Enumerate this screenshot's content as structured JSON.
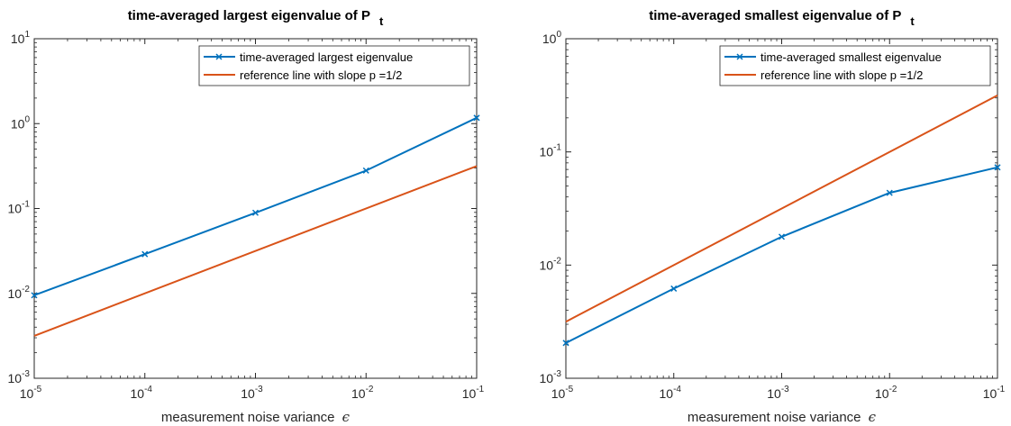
{
  "colors": {
    "series_1": "#0072BD",
    "series_2": "#D95319",
    "axes": "#262626"
  },
  "chart_data": [
    {
      "type": "line",
      "title": "time-averaged largest eigenvalue of P",
      "title_subscript": "t",
      "xlabel": "measurement noise variance",
      "xlabel_symbol": "ϵ",
      "xscale": "log",
      "yscale": "log",
      "xlim": [
        1e-05,
        0.1
      ],
      "ylim": [
        0.001,
        10
      ],
      "x_ticks": [
        {
          "base": "10",
          "exp": "-5",
          "value": 1e-05
        },
        {
          "base": "10",
          "exp": "-4",
          "value": 0.0001
        },
        {
          "base": "10",
          "exp": "-3",
          "value": 0.001
        },
        {
          "base": "10",
          "exp": "-2",
          "value": 0.01
        },
        {
          "base": "10",
          "exp": "-1",
          "value": 0.1
        }
      ],
      "y_ticks": [
        {
          "base": "10",
          "exp": "-3",
          "value": 0.001
        },
        {
          "base": "10",
          "exp": "-2",
          "value": 0.01
        },
        {
          "base": "10",
          "exp": "-1",
          "value": 0.1
        },
        {
          "base": "10",
          "exp": "0",
          "value": 1
        },
        {
          "base": "10",
          "exp": "1",
          "value": 10
        }
      ],
      "grid": false,
      "legend_position": "top-right",
      "series": [
        {
          "name": "time-averaged largest eigenvalue",
          "color": "#0072BD",
          "marker": "x",
          "x": [
            1e-05,
            0.0001,
            0.001,
            0.01,
            0.1
          ],
          "y": [
            0.0095,
            0.029,
            0.089,
            0.28,
            1.17
          ]
        },
        {
          "name": "reference line with slope p =1/2",
          "color": "#D95319",
          "marker": "none",
          "x": [
            1e-05,
            0.1
          ],
          "y": [
            0.00316,
            0.316
          ]
        }
      ]
    },
    {
      "type": "line",
      "title": "time-averaged smallest eigenvalue of P",
      "title_subscript": "t",
      "xlabel": "measurement noise variance",
      "xlabel_symbol": "ϵ",
      "xscale": "log",
      "yscale": "log",
      "xlim": [
        1e-05,
        0.1
      ],
      "ylim": [
        0.001,
        1
      ],
      "x_ticks": [
        {
          "base": "10",
          "exp": "-5",
          "value": 1e-05
        },
        {
          "base": "10",
          "exp": "-4",
          "value": 0.0001
        },
        {
          "base": "10",
          "exp": "-3",
          "value": 0.001
        },
        {
          "base": "10",
          "exp": "-2",
          "value": 0.01
        },
        {
          "base": "10",
          "exp": "-1",
          "value": 0.1
        }
      ],
      "y_ticks": [
        {
          "base": "10",
          "exp": "-3",
          "value": 0.001
        },
        {
          "base": "10",
          "exp": "-2",
          "value": 0.01
        },
        {
          "base": "10",
          "exp": "-1",
          "value": 0.1
        },
        {
          "base": "10",
          "exp": "0",
          "value": 1
        }
      ],
      "grid": false,
      "legend_position": "top-right",
      "series": [
        {
          "name": "time-averaged smallest eigenvalue",
          "color": "#0072BD",
          "marker": "x",
          "x": [
            1e-05,
            0.0001,
            0.001,
            0.01,
            0.1
          ],
          "y": [
            0.00205,
            0.0062,
            0.0178,
            0.0435,
            0.073
          ]
        },
        {
          "name": "reference line with slope p =1/2",
          "color": "#D95319",
          "marker": "none",
          "x": [
            1e-05,
            0.1
          ],
          "y": [
            0.00316,
            0.316
          ]
        }
      ]
    }
  ]
}
